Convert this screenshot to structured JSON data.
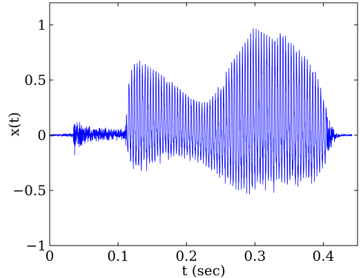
{
  "chart_data": {
    "type": "line",
    "xlabel": "t (sec)",
    "ylabel": "x(t)",
    "xlim": [
      0,
      0.45
    ],
    "ylim": [
      -1,
      1.2
    ],
    "xticks": [
      0,
      0.1,
      0.2,
      0.3,
      0.4
    ],
    "xtick_labels": [
      "0",
      "0.1",
      "0.2",
      "0.3",
      "0.4"
    ],
    "yticks": [
      -1,
      -0.5,
      0,
      0.5,
      1
    ],
    "ytick_labels": [
      "−1",
      "−0.5",
      "0",
      "0.5",
      "1"
    ],
    "grid": false,
    "line_color": "#0000ff",
    "series": [
      {
        "t": [
          0.0,
          0.034,
          0.036,
          0.04,
          0.05,
          0.06,
          0.07,
          0.08,
          0.09,
          0.1,
          0.11,
          0.112,
          0.115,
          0.12,
          0.125,
          0.13,
          0.14,
          0.15,
          0.16,
          0.17,
          0.18,
          0.19,
          0.2,
          0.21,
          0.22,
          0.23,
          0.24,
          0.25,
          0.26,
          0.27,
          0.28,
          0.29,
          0.3,
          0.31,
          0.32,
          0.33,
          0.34,
          0.35,
          0.36,
          0.37,
          0.38,
          0.39,
          0.4,
          0.41,
          0.415,
          0.42,
          0.43,
          0.44
        ],
        "upper": [
          0.01,
          0.02,
          0.19,
          0.16,
          0.12,
          0.08,
          0.07,
          0.07,
          0.06,
          0.06,
          0.07,
          0.2,
          0.45,
          0.6,
          0.66,
          0.68,
          0.64,
          0.6,
          0.56,
          0.52,
          0.48,
          0.42,
          0.36,
          0.32,
          0.3,
          0.3,
          0.36,
          0.48,
          0.6,
          0.7,
          0.78,
          0.88,
          1.0,
          0.93,
          0.9,
          0.85,
          0.95,
          0.85,
          0.8,
          0.74,
          0.66,
          0.56,
          0.35,
          0.16,
          0.06,
          0.02,
          0.01,
          0.01
        ],
        "lower": [
          -0.01,
          -0.02,
          -0.2,
          -0.13,
          -0.1,
          -0.07,
          -0.06,
          -0.06,
          -0.05,
          -0.05,
          -0.06,
          -0.15,
          -0.25,
          -0.33,
          -0.38,
          -0.39,
          -0.37,
          -0.34,
          -0.3,
          -0.27,
          -0.25,
          -0.24,
          -0.25,
          -0.26,
          -0.28,
          -0.32,
          -0.38,
          -0.44,
          -0.5,
          -0.55,
          -0.58,
          -0.6,
          -0.62,
          -0.6,
          -0.58,
          -0.55,
          -0.56,
          -0.54,
          -0.56,
          -0.52,
          -0.5,
          -0.44,
          -0.34,
          -0.15,
          -0.08,
          -0.03,
          -0.01,
          -0.01
        ]
      }
    ]
  }
}
